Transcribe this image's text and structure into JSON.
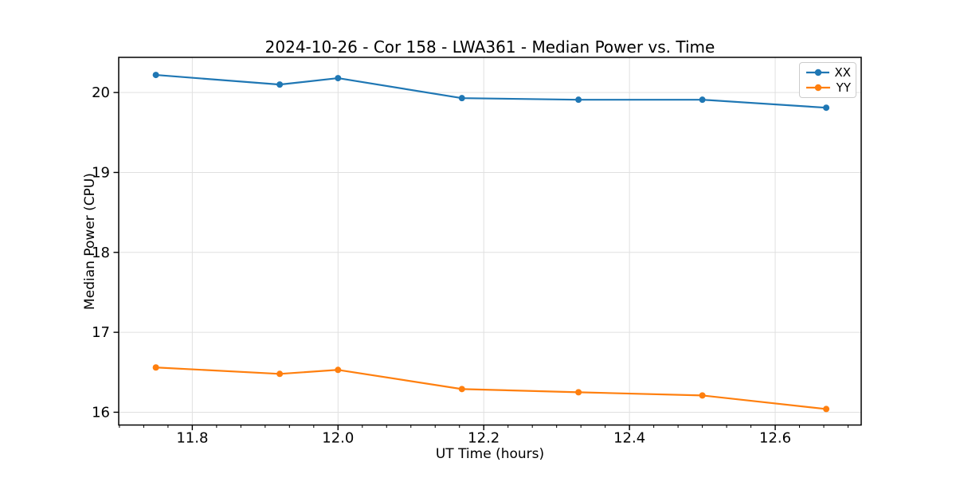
{
  "chart_data": {
    "type": "line",
    "title": "2024-10-26 - Cor 158 - LWA361 - Median Power vs. Time",
    "xlabel": "UT Time (hours)",
    "ylabel": "Median Power (CPU)",
    "x": [
      11.75,
      11.92,
      12.0,
      12.17,
      12.33,
      12.5,
      12.67
    ],
    "series": [
      {
        "name": "XX",
        "color": "#1f77b4",
        "values": [
          20.22,
          20.1,
          20.18,
          19.93,
          19.91,
          19.91,
          19.81
        ]
      },
      {
        "name": "YY",
        "color": "#ff7f0e",
        "values": [
          16.56,
          16.48,
          16.53,
          16.29,
          16.25,
          16.21,
          16.04
        ]
      }
    ],
    "xlim": [
      11.699,
      12.718
    ],
    "ylim": [
      15.84,
      20.44
    ],
    "x_ticks": [
      11.8,
      12.0,
      12.2,
      12.4,
      12.6
    ],
    "x_tick_labels": [
      "11.8",
      "12.0",
      "12.2",
      "12.4",
      "12.6"
    ],
    "x_minor_step": 0.033333,
    "y_ticks": [
      16,
      17,
      18,
      19,
      20
    ],
    "y_tick_labels": [
      "16",
      "17",
      "18",
      "19",
      "20"
    ],
    "grid": true,
    "grid_color": "#e0e0e0",
    "spine_color": "#000000",
    "legend": {
      "position": "upper right"
    }
  }
}
